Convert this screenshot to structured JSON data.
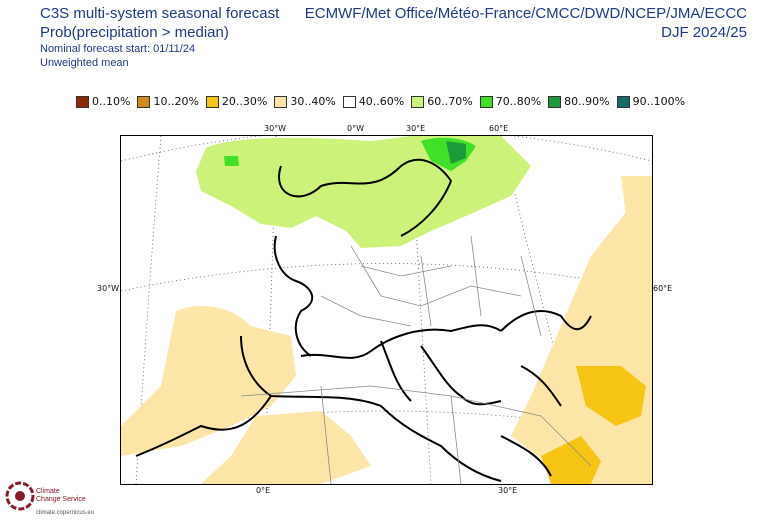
{
  "header": {
    "title": "C3S multi-system seasonal forecast",
    "subtitle": "Prob(precipitation > median)",
    "start_line": "Nominal forecast start: 01/11/24",
    "weighting": "Unweighted mean",
    "systems": "ECMWF/Met Office/Météo-France/CMCC/DWD/NCEP/JMA/ECCC",
    "season": "DJF 2024/25"
  },
  "legend": [
    {
      "label": "0..10%",
      "color": "#8b2a07"
    },
    {
      "label": "10..20%",
      "color": "#d08a1e"
    },
    {
      "label": "20..30%",
      "color": "#f5c414"
    },
    {
      "label": "30..40%",
      "color": "#fbe6a8"
    },
    {
      "label": "40..60%",
      "color": "#ffffff"
    },
    {
      "label": "60..70%",
      "color": "#ccf27a"
    },
    {
      "label": "70..80%",
      "color": "#3fe025"
    },
    {
      "label": "80..90%",
      "color": "#1d9a3a"
    },
    {
      "label": "90..100%",
      "color": "#136b63"
    }
  ],
  "axes": {
    "top": [
      "30°W",
      "0°W",
      "30°E",
      "60°E"
    ],
    "left": "30°W",
    "right": "60°E",
    "bottom": [
      "0°E",
      "30°E"
    ]
  },
  "logo": {
    "name_line1": "Climate",
    "name_line2": "Change Service",
    "url": "climate.copernicus.eu"
  }
}
